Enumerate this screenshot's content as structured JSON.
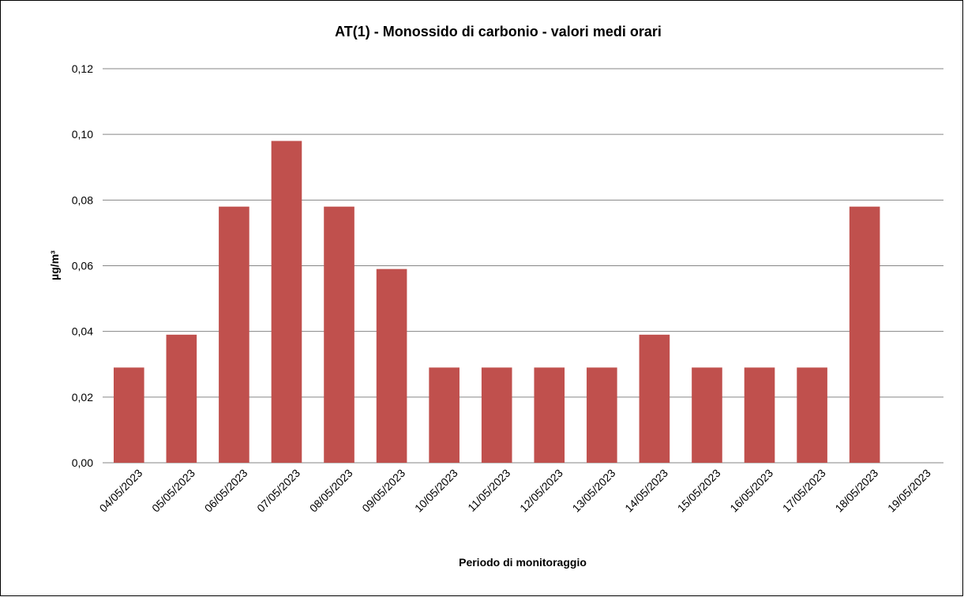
{
  "chart_data": {
    "type": "bar",
    "title": "AT(1) - Monossido di carbonio - valori medi orari",
    "x_label": "Periodo di  monitoraggio",
    "y_label": "µg/m³",
    "categories": [
      "04/05/2023",
      "05/05/2023",
      "06/05/2023",
      "07/05/2023",
      "08/05/2023",
      "09/05/2023",
      "10/05/2023",
      "11/05/2023",
      "12/05/2023",
      "13/05/2023",
      "14/05/2023",
      "15/05/2023",
      "16/05/2023",
      "17/05/2023",
      "18/05/2023",
      "19/05/2023"
    ],
    "values": [
      0.029,
      0.039,
      0.078,
      0.098,
      0.078,
      0.059,
      0.029,
      0.029,
      0.029,
      0.029,
      0.039,
      0.029,
      0.029,
      0.029,
      0.078,
      null
    ],
    "color": "#c0504d",
    "ylim": [
      0,
      0.12
    ],
    "yticks": [
      {
        "value": 0,
        "label": "0,00"
      },
      {
        "value": 0.02,
        "label": "0,02"
      },
      {
        "value": 0.04,
        "label": "0,04"
      },
      {
        "value": 0.06,
        "label": "0,06"
      },
      {
        "value": 0.08,
        "label": "0,08"
      },
      {
        "value": 0.1,
        "label": "0,10"
      },
      {
        "value": 0.12,
        "label": "0,12"
      }
    ],
    "grid": true
  }
}
